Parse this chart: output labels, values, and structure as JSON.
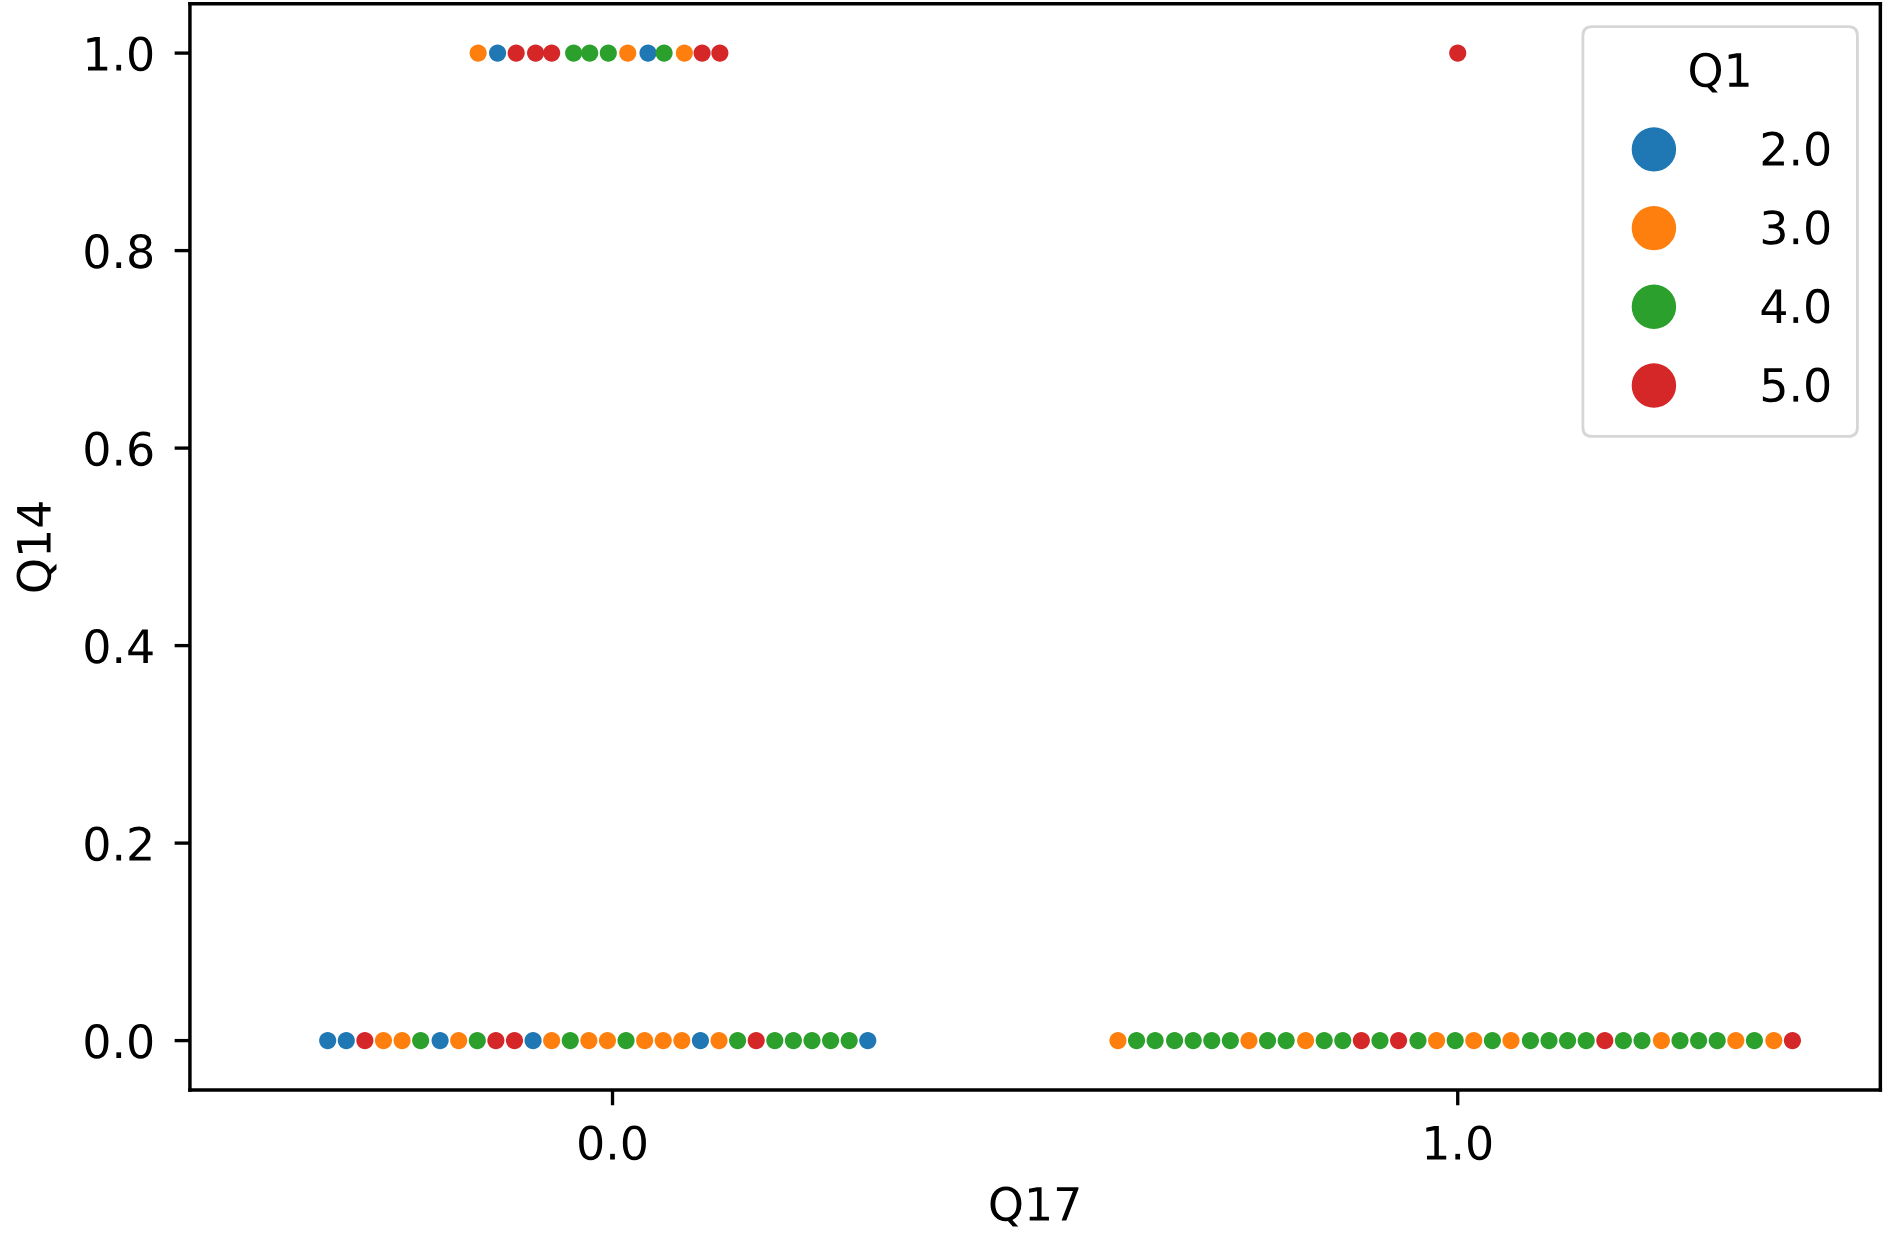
{
  "chart_data": {
    "type": "scatter",
    "xlabel": "Q17",
    "ylabel": "Q14",
    "legend_title": "Q1",
    "legend": "top right",
    "marker": "circle",
    "xlim": [
      -0.5,
      1.5
    ],
    "xticks": [
      {
        "value": 0,
        "label": "0.0"
      },
      {
        "value": 1,
        "label": "1.0"
      }
    ],
    "ylim": [
      -0.05,
      1.05
    ],
    "yticks": [
      {
        "value": 0,
        "label": "0.0"
      },
      {
        "value": 0.2,
        "label": "0.2"
      },
      {
        "value": 0.4,
        "label": "0.4"
      },
      {
        "value": 0.6,
        "label": "0.6"
      },
      {
        "value": 0.8,
        "label": "0.8"
      },
      {
        "value": 1,
        "label": "1.0"
      }
    ],
    "series": [
      {
        "name": "2.0",
        "color": "#1f77b4",
        "x": [
          -0.337,
          -0.315,
          -0.204,
          -0.094,
          0.104,
          0.302,
          -0.136,
          0.042
        ],
        "values": [
          0,
          0,
          0,
          0,
          0,
          0,
          1,
          1
        ]
      },
      {
        "name": "3.0",
        "color": "#ff7f0e",
        "x": [
          -0.271,
          -0.249,
          -0.182,
          -0.072,
          -0.028,
          -0.006,
          0.038,
          0.06,
          0.082,
          0.126,
          0.598,
          0.753,
          0.82,
          0.975,
          1.019,
          1.063,
          1.241,
          1.329,
          1.374,
          -0.159,
          0.018,
          0.085
        ],
        "values": [
          0,
          0,
          0,
          0,
          0,
          0,
          0,
          0,
          0,
          0,
          0,
          0,
          0,
          0,
          0,
          0,
          0,
          0,
          0,
          1,
          1,
          1
        ]
      },
      {
        "name": "4.0",
        "color": "#2ca02c",
        "x": [
          -0.227,
          -0.16,
          -0.05,
          0.016,
          0.148,
          0.192,
          0.214,
          0.236,
          0.258,
          0.28,
          0.62,
          0.642,
          0.665,
          0.687,
          0.709,
          0.731,
          0.775,
          0.797,
          0.842,
          0.864,
          0.908,
          0.953,
          0.997,
          1.041,
          1.086,
          1.108,
          1.13,
          1.152,
          1.196,
          1.218,
          1.263,
          1.285,
          1.307,
          1.351,
          -0.046,
          -0.027,
          -0.005,
          0.061
        ],
        "values": [
          0,
          0,
          0,
          0,
          0,
          0,
          0,
          0,
          0,
          0,
          0,
          0,
          0,
          0,
          0,
          0,
          0,
          0,
          0,
          0,
          0,
          0,
          0,
          0,
          0,
          0,
          0,
          0,
          0,
          0,
          0,
          0,
          0,
          0,
          1,
          1,
          1,
          1
        ]
      },
      {
        "name": "5.0",
        "color": "#d62728",
        "x": [
          -0.293,
          -0.138,
          -0.116,
          0.17,
          0.886,
          0.93,
          1.174,
          1.396,
          -0.114,
          -0.091,
          -0.072,
          0.106,
          0.127,
          1.0
        ],
        "values": [
          0,
          0,
          0,
          0,
          0,
          0,
          0,
          0,
          1,
          1,
          1,
          1,
          1,
          1
        ]
      }
    ]
  }
}
